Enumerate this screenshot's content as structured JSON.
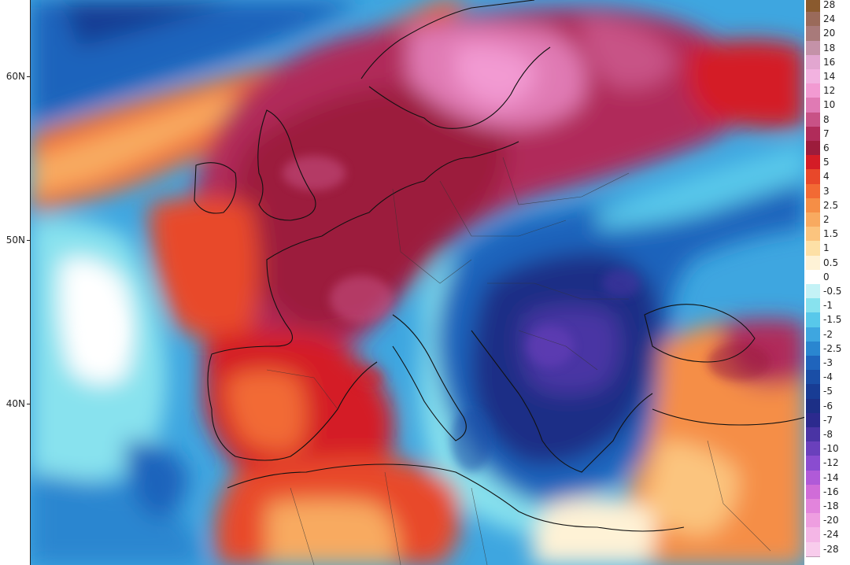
{
  "latitude_labels": [
    "60N",
    "50N",
    "40N"
  ],
  "legend": [
    {
      "label": "28",
      "color": "#8a5a2e"
    },
    {
      "label": "24",
      "color": "#9a6a5a"
    },
    {
      "label": "20",
      "color": "#a87a7a"
    },
    {
      "label": "18",
      "color": "#c492a8"
    },
    {
      "label": "16",
      "color": "#e2a6d0"
    },
    {
      "label": "14",
      "color": "#f2b2e0"
    },
    {
      "label": "12",
      "color": "#f29ad2"
    },
    {
      "label": "10",
      "color": "#e07ab4"
    },
    {
      "label": "8",
      "color": "#c85286"
    },
    {
      "label": "7",
      "color": "#b02c5a"
    },
    {
      "label": "6",
      "color": "#9c1c3c"
    },
    {
      "label": "5",
      "color": "#d41c26"
    },
    {
      "label": "4",
      "color": "#e8482a"
    },
    {
      "label": "3",
      "color": "#f26a34"
    },
    {
      "label": "2.5",
      "color": "#f58e46"
    },
    {
      "label": "2",
      "color": "#f8aa60"
    },
    {
      "label": "1.5",
      "color": "#fbc47e"
    },
    {
      "label": "1",
      "color": "#fde0a6"
    },
    {
      "label": "0.5",
      "color": "#fef2d6"
    },
    {
      "label": "0",
      "color": "#ffffff"
    },
    {
      "label": "-0.5",
      "color": "#c4f2f6"
    },
    {
      "label": "-1",
      "color": "#88e2ee"
    },
    {
      "label": "-1.5",
      "color": "#58c8ea"
    },
    {
      "label": "-2",
      "color": "#3ea6e0"
    },
    {
      "label": "-2.5",
      "color": "#2a86d0"
    },
    {
      "label": "-3",
      "color": "#1f64bc"
    },
    {
      "label": "-4",
      "color": "#1a4ea6"
    },
    {
      "label": "-5",
      "color": "#183c94"
    },
    {
      "label": "-6",
      "color": "#1c2f86"
    },
    {
      "label": "-7",
      "color": "#2c2a8e"
    },
    {
      "label": "-8",
      "color": "#4a34a4"
    },
    {
      "label": "-10",
      "color": "#6a40bc"
    },
    {
      "label": "-12",
      "color": "#8a4cd0"
    },
    {
      "label": "-14",
      "color": "#b05ad8"
    },
    {
      "label": "-16",
      "color": "#d06cd8"
    },
    {
      "label": "-18",
      "color": "#e284dc"
    },
    {
      "label": "-20",
      "color": "#ee9ee0"
    },
    {
      "label": "-24",
      "color": "#f4b6e6"
    },
    {
      "label": "-28",
      "color": "#f8ccec"
    }
  ]
}
